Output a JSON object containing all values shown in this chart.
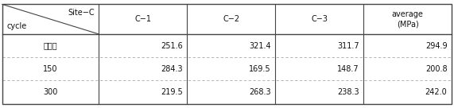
{
  "col_headers": [
    "C−1",
    "C−2",
    "C−3",
    "average\n(MPa)"
  ],
  "row_headers": [
    "초기값",
    "150",
    "300"
  ],
  "values": [
    [
      "251.6",
      "321.4",
      "311.7",
      "294.9"
    ],
    [
      "284.3",
      "169.5",
      "148.7",
      "200.8"
    ],
    [
      "219.5",
      "268.3",
      "238.3",
      "242.0"
    ]
  ],
  "corner_top": "Site−C",
  "corner_bottom": "cycle",
  "bg_color": "#ffffff",
  "text_color": "#111111",
  "border_color": "#444444",
  "dashed_color": "#aaaaaa",
  "fig_width": 5.71,
  "fig_height": 1.36,
  "dpi": 100,
  "fontsize": 7.0
}
